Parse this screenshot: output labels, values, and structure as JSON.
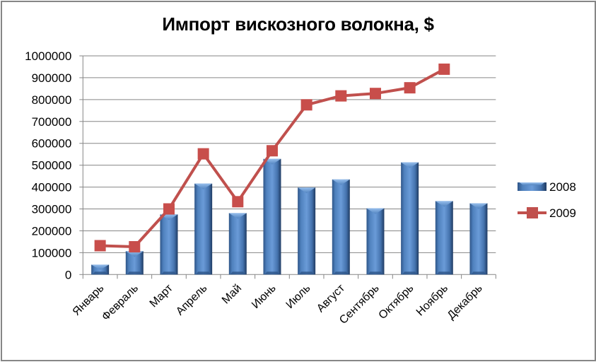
{
  "chart_data": {
    "type": "bar",
    "title": "Импорт вискозного волокна, $",
    "xlabel": "",
    "ylabel": "",
    "ylim": [
      0,
      1000000
    ],
    "yticks": [
      0,
      100000,
      200000,
      300000,
      400000,
      500000,
      600000,
      700000,
      800000,
      900000,
      1000000
    ],
    "grid": true,
    "legend_position": "right",
    "categories": [
      "Январь",
      "Февраль",
      "Март",
      "Апрель",
      "Май",
      "Июнь",
      "Июль",
      "Август",
      "Сентябрь",
      "Октябрь",
      "Ноябрь",
      "Декабрь"
    ],
    "series": [
      {
        "name": "2008",
        "type": "bar",
        "color": "#4F81BD",
        "values": [
          45000,
          107000,
          275000,
          416000,
          281000,
          529000,
          398000,
          435000,
          303000,
          513000,
          336000,
          326000
        ]
      },
      {
        "name": "2009",
        "type": "line",
        "marker": "square",
        "color": "#C0504D",
        "values": [
          132000,
          127000,
          300000,
          552000,
          333000,
          566000,
          776000,
          817000,
          828000,
          854000,
          939000,
          null
        ]
      }
    ]
  },
  "legend": {
    "items": [
      {
        "label": "2008",
        "color": "#4F81BD"
      },
      {
        "label": "2009",
        "color": "#C0504D"
      }
    ]
  }
}
